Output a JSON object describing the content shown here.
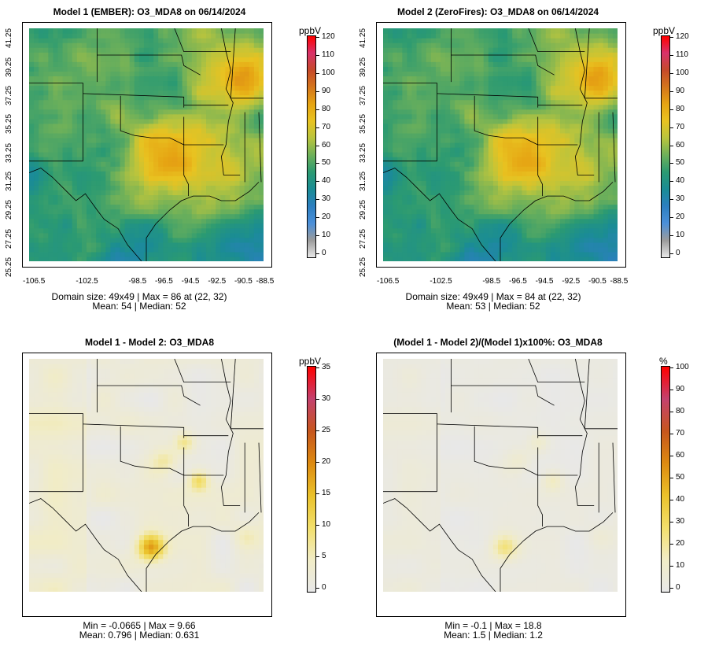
{
  "panels": [
    {
      "id": "p1",
      "title": "Model 1 (EMBER): O3_MDA8 on 06/14/2024",
      "stat1": "Domain size: 49x49 | Max = 86 at (22, 32)",
      "stat2": "Mean: 54 |  Median: 52",
      "unit": "ppbV",
      "ticks": [
        "0",
        "10",
        "20",
        "30",
        "40",
        "50",
        "60",
        "70",
        "80",
        "90",
        "100",
        "110",
        "120"
      ],
      "palette": "conc"
    },
    {
      "id": "p2",
      "title": "Model 2 (ZeroFires): O3_MDA8 on 06/14/2024",
      "stat1": "Domain size: 49x49 | Max = 84 at (22, 32)",
      "stat2": "Mean: 53 |  Median: 52",
      "unit": "ppbV",
      "ticks": [
        "0",
        "10",
        "20",
        "30",
        "40",
        "50",
        "60",
        "70",
        "80",
        "90",
        "100",
        "110",
        "120"
      ],
      "palette": "conc"
    },
    {
      "id": "p3",
      "title": "Model 1 - Model 2: O3_MDA8",
      "stat1": "Min = -0.0665 | Max = 9.66",
      "stat2": "Mean: 0.796 |  Median: 0.631",
      "unit": "ppbV",
      "ticks": [
        "0",
        "5",
        "10",
        "15",
        "20",
        "25",
        "30",
        "35"
      ],
      "palette": "diff"
    },
    {
      "id": "p4",
      "title": "(Model 1 - Model 2)/(Model 1)x100%: O3_MDA8",
      "stat1": "Min = -0.1 | Max = 18.8",
      "stat2": "Mean: 1.5 |  Median: 1.2",
      "unit": "%",
      "ticks": [
        "0",
        "10",
        "20",
        "30",
        "40",
        "50",
        "60",
        "70",
        "80",
        "90",
        "100"
      ],
      "palette": "diff"
    }
  ],
  "axes": {
    "lat_labels": [
      "25.25",
      "27.25",
      "29.25",
      "31.25",
      "33.25",
      "35.25",
      "37.25",
      "39.25",
      "41.25"
    ],
    "lon_labels": [
      "-106.5",
      "-102.5",
      "-98.5",
      "-96.5",
      "-94.5",
      "-92.5",
      "-90.5",
      "-88.5"
    ]
  },
  "colors": {
    "conc": [
      "#e8e8e8",
      "#9b9b9b",
      "#4b8fd9",
      "#2c7fc0",
      "#1a8c95",
      "#2b9a72",
      "#6db05a",
      "#b8c43e",
      "#e8c321",
      "#e6a413",
      "#d4761c",
      "#c64a2a",
      "#d8336b",
      "#ff0000"
    ],
    "diff": [
      "#e8e8e8",
      "#f1ecc6",
      "#f2df6b",
      "#eac12a",
      "#dd8a10",
      "#c6561e",
      "#c4416e",
      "#ff0000"
    ]
  }
}
